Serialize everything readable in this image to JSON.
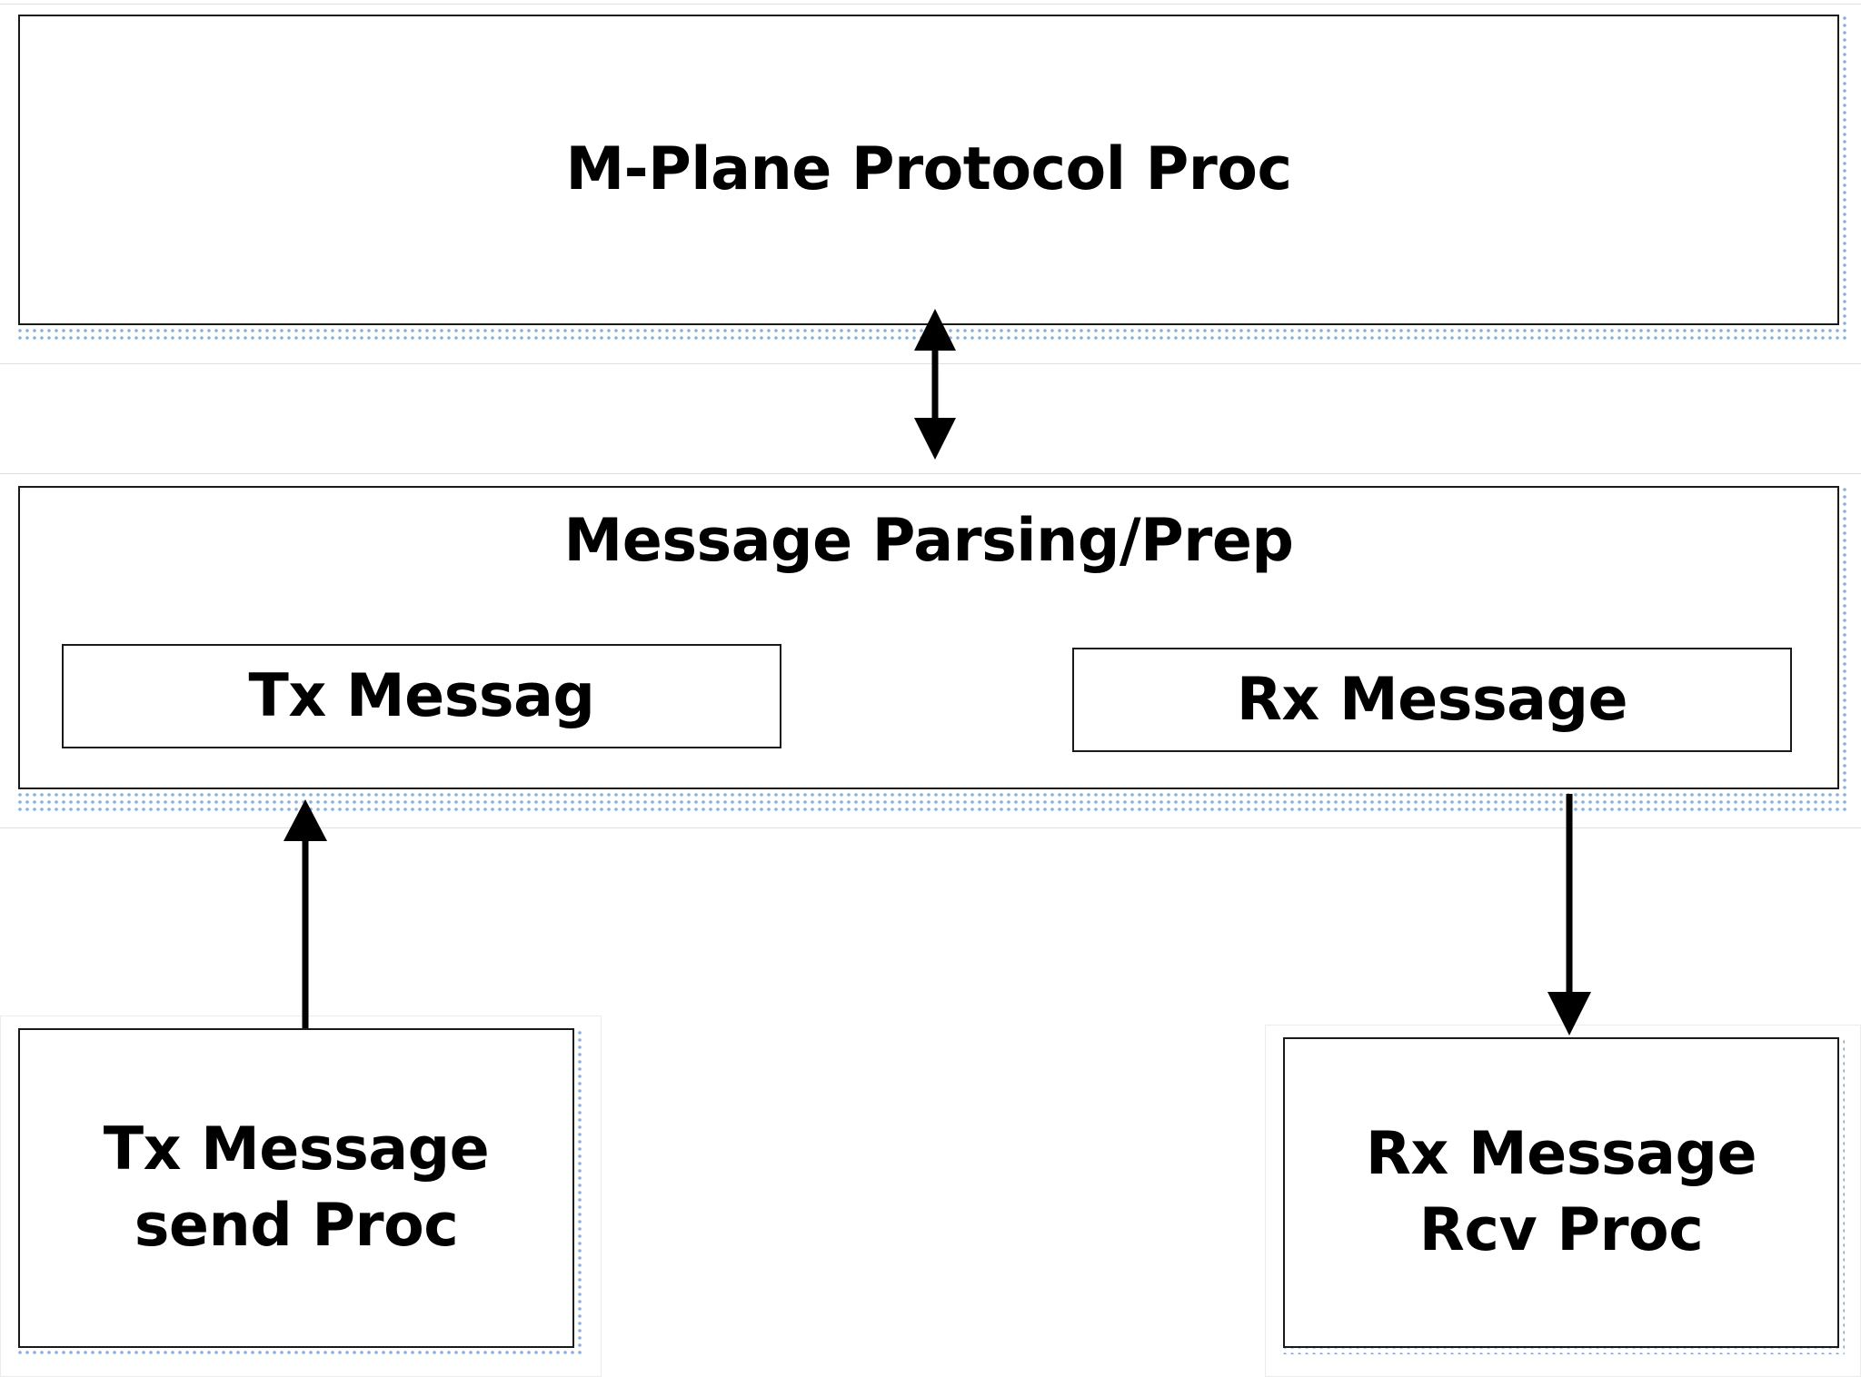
{
  "diagram": {
    "nodes": {
      "mplane": {
        "label": "M-Plane Protocol Proc"
      },
      "parsing": {
        "label": "Message Parsing/Prep"
      },
      "tx_message": {
        "label": "Tx Messag"
      },
      "rx_message": {
        "label": "Rx Message"
      },
      "tx_send": {
        "label": "Tx Message send Proc"
      },
      "rx_rcv": {
        "label": "Rx Message Rcv Proc"
      }
    },
    "edges": [
      {
        "from": "mplane",
        "to": "parsing",
        "direction": "both"
      },
      {
        "from": "tx_send",
        "to": "tx_message",
        "direction": "forward"
      },
      {
        "from": "rx_message",
        "to": "rx_rcv",
        "direction": "forward"
      }
    ],
    "colors": {
      "border": "#1a1a1a",
      "shadow_dots": "#7fa6d8",
      "arrow": "#000000"
    }
  }
}
